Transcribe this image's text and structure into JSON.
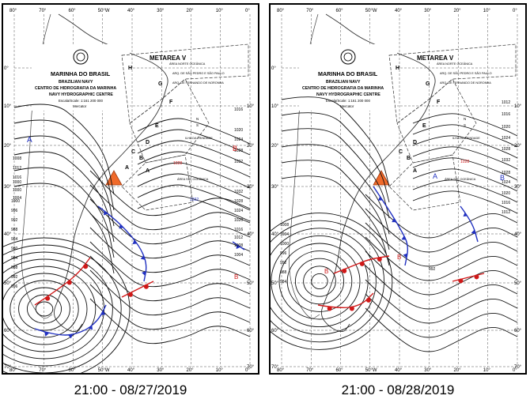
{
  "maps": [
    {
      "id": "left",
      "caption": "21:00 - 08/27/2019",
      "lon_labels": [
        "80°",
        "70°",
        "60°",
        "50°W",
        "40°",
        "30°",
        "20°",
        "10°",
        "0°"
      ],
      "lat_labels": [
        "0°",
        "10°",
        "20°",
        "30°",
        "40°",
        "50°",
        "60°",
        "70°"
      ],
      "lat_labels_right": [
        "10°",
        "20°",
        "30°",
        "40°",
        "50°",
        "60°",
        "70°"
      ],
      "header": {
        "title": "MARINHA DO BRASIL",
        "line2": "BRAZILIAN NAVY",
        "line3": "CENTRO DE HIDROGRAFIA DA MARINHA",
        "line4": "NAVY HYDROGRAPHIC CENTRE",
        "scale": "Escala/Scale: 1:161 200 000",
        "proj": "Mercator"
      },
      "metarea": "METAREA V",
      "areas": [
        "H",
        "G",
        "F",
        "E",
        "D",
        "C",
        "B",
        "A"
      ],
      "area_names": [
        "ÁREA NORTE OCEÂNICA",
        "ARQ. DE SÃO PEDRO E SÃO PAULO",
        "ARQ. DE FERNANDO DE NORONHA",
        "ILHA DA TRINDADE",
        "ÁREA SUL OCEÂNICA"
      ],
      "labels_isobar": [
        "1016",
        "1020",
        "1024",
        "1028",
        "1032",
        "1032",
        "1028",
        "1024",
        "1020",
        "1016",
        "1012",
        "1008",
        "1004",
        "1000",
        "996",
        "992",
        "988",
        "984",
        "980",
        "984",
        "988",
        "992",
        "996",
        "1000",
        "1000",
        "1004",
        "1008",
        "1012",
        "1016"
      ],
      "pressure_labels": [
        "A",
        "A",
        "1000",
        "1012",
        "1016",
        "1020",
        "1024",
        "1028",
        "1032"
      ],
      "red_annotations": [
        "1028",
        "1032",
        "994",
        "976",
        "1032",
        "B"
      ],
      "compass": "N S"
    },
    {
      "id": "right",
      "caption": "21:00 - 08/28/2019",
      "lon_labels": [
        "80°",
        "70°",
        "60°",
        "50°W",
        "40°",
        "30°",
        "20°",
        "10°",
        "0°"
      ],
      "lat_labels": [
        "0°",
        "10°",
        "20°",
        "30°",
        "40°",
        "50°",
        "60°",
        "70°"
      ],
      "lat_labels_right": [
        "10°",
        "20°",
        "30°",
        "40°",
        "50°",
        "60°",
        "70°"
      ],
      "header": {
        "title": "MARINHA DO BRASIL",
        "line2": "BRAZILIAN NAVY",
        "line3": "CENTRO DE HIDROGRAFIA DA MARINHA",
        "line4": "NAVY HYDROGRAPHIC CENTRE",
        "scale": "Escala/Scale: 1:161 200 000",
        "proj": "Mercator"
      },
      "metarea": "METAREA V",
      "areas": [
        "H",
        "G",
        "F",
        "E",
        "D",
        "C",
        "B",
        "A"
      ],
      "area_names": [
        "ÁREA NORTE OCEÂNICA",
        "ARQ. DE SÃO PEDRO E SÃO PAULO",
        "ARQ. DE FERNANDO DE NORONHA",
        "ILHA DA TRINDADE",
        "ÁREA SUL OCEÂNICA"
      ],
      "pressure_labels": [
        "1012",
        "1016",
        "1020",
        "1024",
        "1028",
        "1032",
        "1028",
        "1024",
        "1020",
        "1016",
        "1012",
        "1008",
        "1004",
        "1000",
        "996",
        "992",
        "988",
        "984"
      ],
      "red_annotations": [
        "1028",
        "B",
        "992",
        "B",
        "B",
        "1032"
      ],
      "compass": "N S"
    }
  ],
  "colors": {
    "front_blue": "#2030c0",
    "front_red": "#d01818",
    "warning_triangle": "#f06a2a"
  }
}
